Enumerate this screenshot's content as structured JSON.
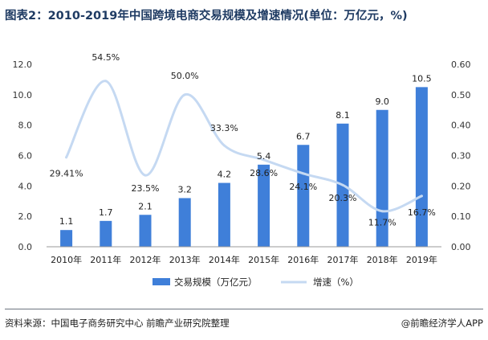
{
  "title": "图表2：2010-2019年中国跨境电商交易规模及增速情况(单位：万亿元，%)",
  "source": "资料来源：中国电子商务研究中心 前瞻产业研究院整理",
  "brand": "@前瞻经济学人APP",
  "chart_data": {
    "type": "bar",
    "title": "图表2：2010-2019年中国跨境电商交易规模及增速情况(单位：万亿元，%)",
    "categories": [
      "2010年",
      "2011年",
      "2012年",
      "2013年",
      "2014年",
      "2015年",
      "2016年",
      "2017年",
      "2018年",
      "2019年"
    ],
    "series": [
      {
        "name": "交易规模（万亿元）",
        "type": "bar",
        "axis": "left",
        "color": "#3f7fd9",
        "values": [
          1.1,
          1.7,
          2.1,
          3.2,
          4.2,
          5.4,
          6.7,
          8.1,
          9.0,
          10.5
        ],
        "labels": [
          "1.1",
          "1.7",
          "2.1",
          "3.2",
          "4.2",
          "5.4",
          "6.7",
          "8.1",
          "9.0",
          "10.5"
        ]
      },
      {
        "name": "增速（%）",
        "type": "line",
        "smooth": true,
        "axis": "right",
        "color": "#c5d9f2",
        "values": [
          0.2941,
          0.545,
          0.235,
          0.5,
          0.333,
          0.286,
          0.241,
          0.203,
          0.117,
          0.167
        ],
        "labels": [
          "29.41%",
          "54.5%",
          "23.5%",
          "50.0%",
          "33.3%",
          "28.6%",
          "24.1%",
          "20.3%",
          "11.7%",
          "16.7%"
        ]
      }
    ],
    "yleft": {
      "min": 0,
      "max": 12,
      "ticks": [
        "0.0",
        "2.0",
        "4.0",
        "6.0",
        "8.0",
        "10.0",
        "12.0"
      ]
    },
    "yright": {
      "min": 0,
      "max": 0.6,
      "ticks": [
        "0.00",
        "0.10",
        "0.20",
        "0.30",
        "0.40",
        "0.50",
        "0.60"
      ]
    },
    "grid": false,
    "legend": "bottom"
  }
}
